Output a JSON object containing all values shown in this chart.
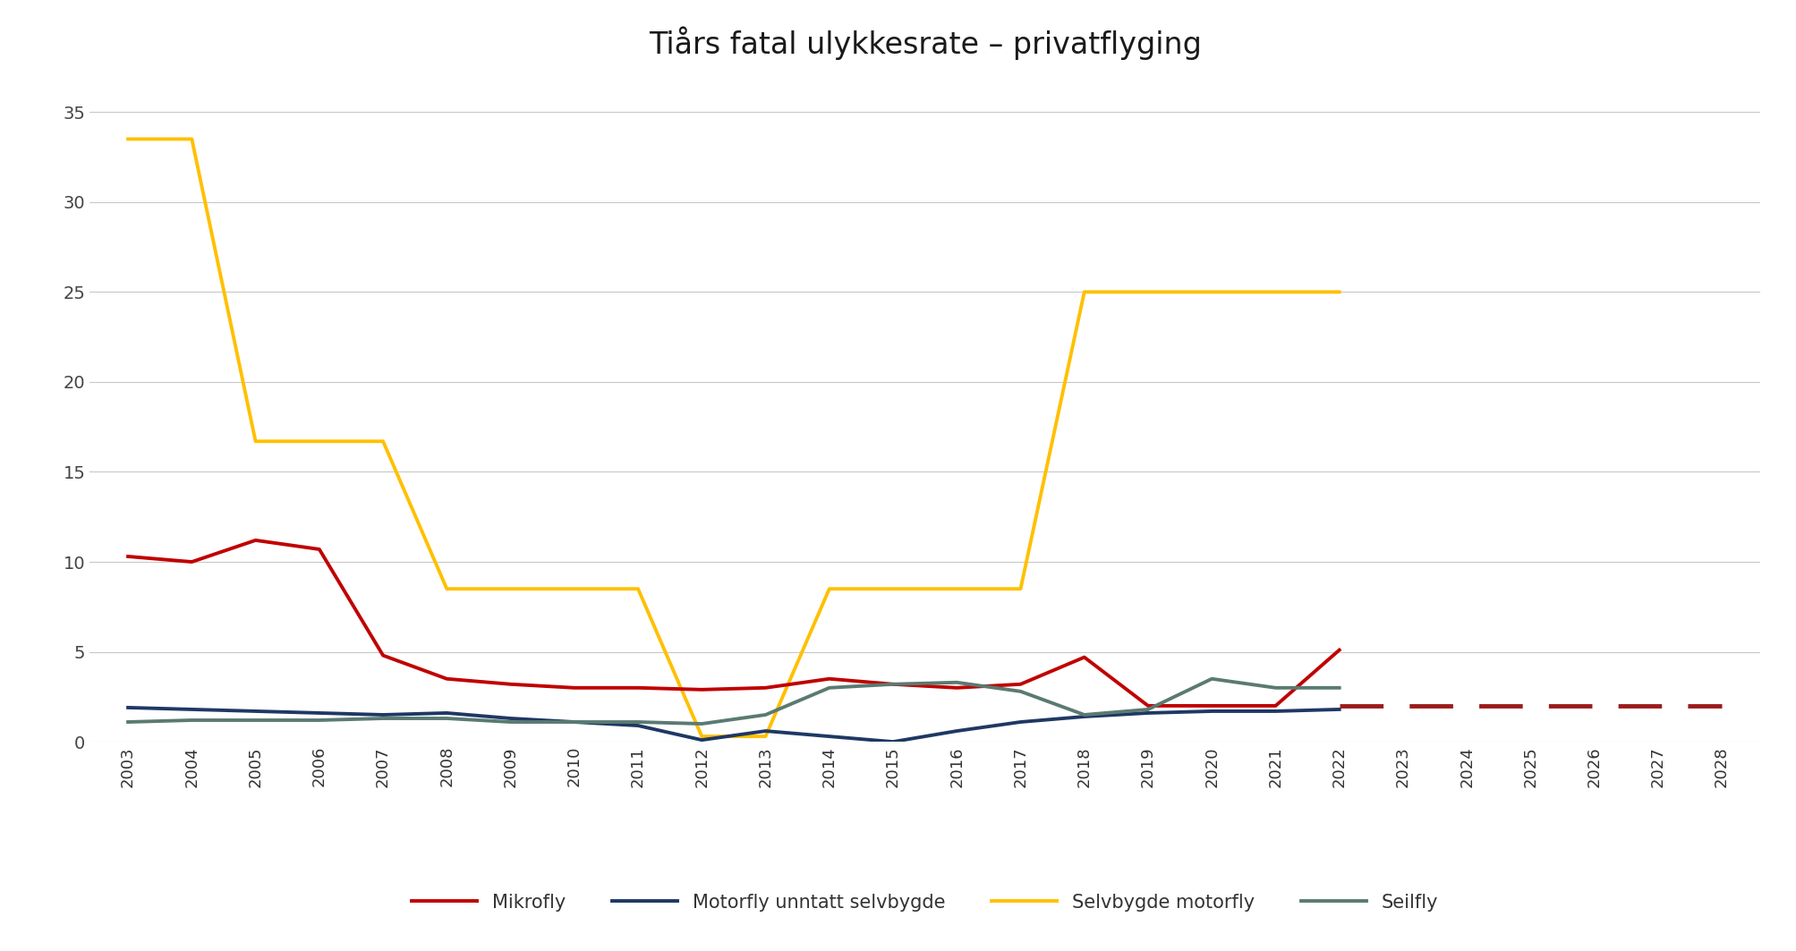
{
  "title": "Tiårs fatal ulykkesrate – privatflyging",
  "years_historical": [
    2003,
    2004,
    2005,
    2006,
    2007,
    2008,
    2009,
    2010,
    2011,
    2012,
    2013,
    2014,
    2015,
    2016,
    2017,
    2018,
    2019,
    2020,
    2021,
    2022
  ],
  "mikrofly": [
    10.3,
    10.0,
    11.2,
    10.7,
    4.8,
    3.5,
    3.2,
    3.0,
    3.0,
    2.9,
    3.0,
    3.5,
    3.2,
    3.0,
    3.2,
    4.7,
    2.0,
    2.0,
    2.0,
    5.1
  ],
  "motorfly": [
    1.9,
    1.8,
    1.7,
    1.6,
    1.5,
    1.6,
    1.3,
    1.1,
    0.9,
    0.1,
    0.6,
    0.3,
    0.0,
    0.6,
    1.1,
    1.4,
    1.6,
    1.7,
    1.7,
    1.8
  ],
  "selvbygde": [
    33.5,
    33.5,
    16.7,
    16.7,
    16.7,
    8.5,
    8.5,
    8.5,
    8.5,
    0.3,
    0.3,
    8.5,
    8.5,
    8.5,
    8.5,
    25.0,
    25.0,
    25.0,
    25.0,
    25.0
  ],
  "seilfly": [
    1.1,
    1.2,
    1.2,
    1.2,
    1.3,
    1.3,
    1.1,
    1.1,
    1.1,
    1.0,
    1.5,
    3.0,
    3.2,
    3.3,
    2.8,
    1.5,
    1.8,
    3.5,
    3.0,
    3.0
  ],
  "target_years": [
    2022,
    2023,
    2024,
    2025,
    2026,
    2027,
    2028
  ],
  "target_mikrofly": [
    2.0,
    2.0,
    2.0,
    2.0,
    2.0,
    2.0,
    2.0
  ],
  "color_mikrofly": "#C00000",
  "color_motorfly": "#1F3864",
  "color_selvbygde": "#FFC000",
  "color_seilfly": "#5A7A72",
  "color_target": "#9B1C1C",
  "ylim": [
    0,
    37
  ],
  "yticks": [
    0,
    5,
    10,
    15,
    20,
    25,
    30,
    35
  ],
  "legend_labels": [
    "Mikrofly",
    "Motorfly unntatt selvbygde",
    "Selvbygde motorfly",
    "Seilfly"
  ],
  "background_color": "#FFFFFF",
  "grid_color": "#C8C8C8"
}
